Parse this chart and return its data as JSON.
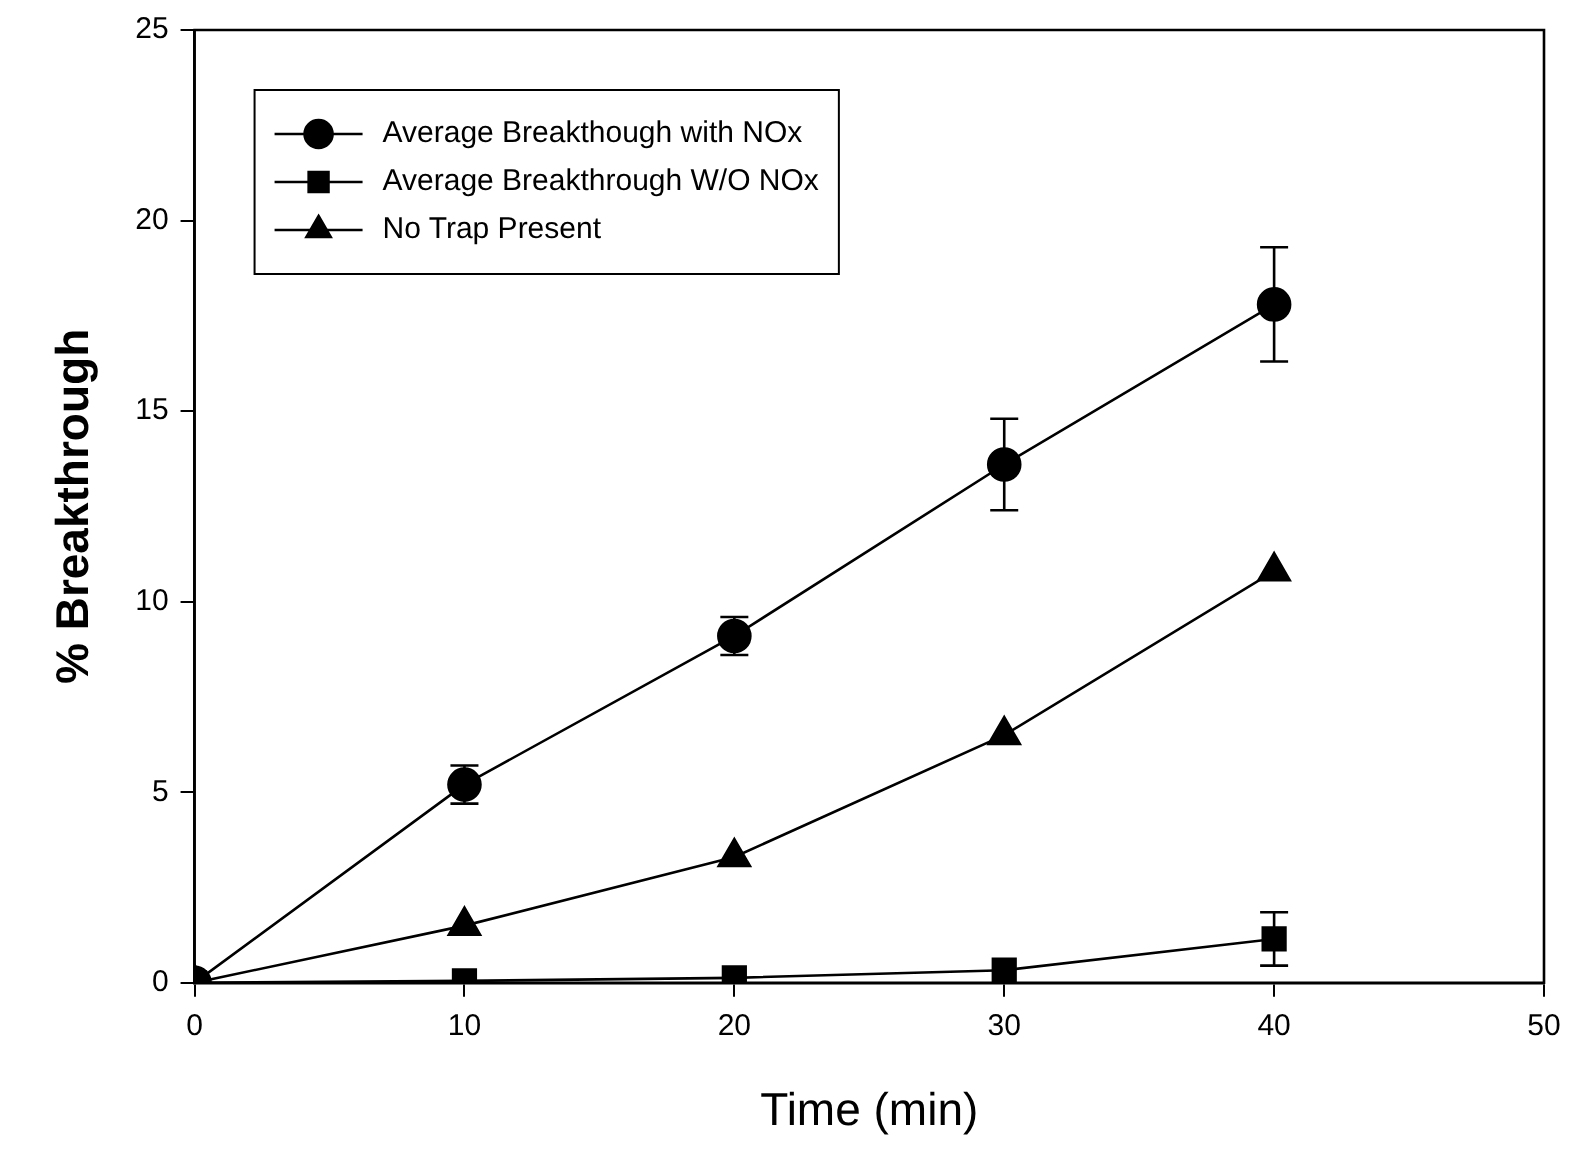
{
  "chart_data": {
    "type": "line",
    "xlabel": "Time (min)",
    "ylabel": "% Breakthrough",
    "x": [
      0,
      10,
      20,
      30,
      40
    ],
    "series": [
      {
        "name": "Average Breakthough with NOx",
        "color": "#000000",
        "marker": "circle",
        "values": [
          0,
          5.2,
          9.1,
          13.6,
          17.8
        ],
        "errors": [
          null,
          0.5,
          0.5,
          1.2,
          1.5
        ]
      },
      {
        "name": "Average Breakthrough W/O NOx",
        "color": "#000000",
        "marker": "square",
        "values": [
          0,
          0.05,
          0.13,
          0.33,
          1.15
        ],
        "errors": [
          null,
          null,
          null,
          null,
          0.7
        ]
      },
      {
        "name": "No Trap Present",
        "color": "#000000",
        "marker": "triangle",
        "values": [
          0,
          1.5,
          3.3,
          6.5,
          10.8
        ]
      }
    ],
    "xlim": [
      0,
      50
    ],
    "xticks": [
      0,
      10,
      20,
      30,
      40,
      50
    ],
    "ylim": [
      0,
      25
    ],
    "yticks": [
      0,
      5,
      10,
      15,
      20,
      25
    ],
    "grid": false,
    "legend": "top left",
    "line_style": "solid"
  }
}
